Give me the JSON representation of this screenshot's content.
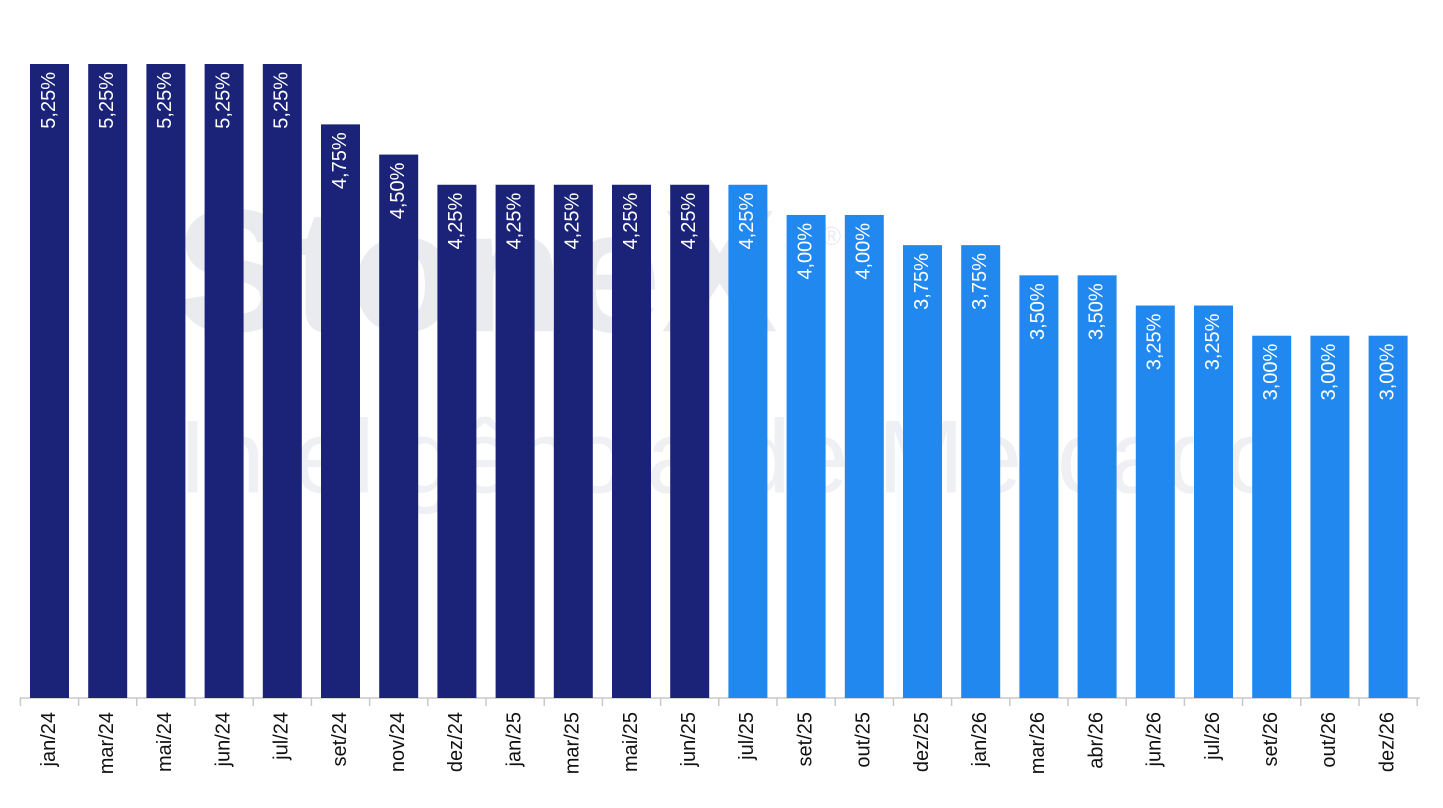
{
  "watermark": {
    "brand": "StoneX",
    "mark": "®",
    "tagline": "Inteligência de Mercado"
  },
  "chart_data": {
    "type": "bar",
    "categories": [
      "jan/24",
      "mar/24",
      "mai/24",
      "jun/24",
      "jul/24",
      "set/24",
      "nov/24",
      "dez/24",
      "jan/25",
      "mar/25",
      "mai/25",
      "jun/25",
      "jul/25",
      "set/25",
      "out/25",
      "dez/25",
      "jan/26",
      "mar/26",
      "abr/26",
      "jun/26",
      "jul/26",
      "set/26",
      "out/26",
      "dez/26"
    ],
    "values": [
      5.25,
      5.25,
      5.25,
      5.25,
      5.25,
      4.75,
      4.5,
      4.25,
      4.25,
      4.25,
      4.25,
      4.25,
      4.25,
      4,
      4,
      3.75,
      3.75,
      3.5,
      3.5,
      3.25,
      3.25,
      3,
      3,
      3
    ],
    "value_labels": [
      "5,25%",
      "5,25%",
      "5,25%",
      "5,25%",
      "5,25%",
      "4,75%",
      "4,50%",
      "4,25%",
      "4,25%",
      "4,25%",
      "4,25%",
      "4,25%",
      "4,25%",
      "4,00%",
      "4,00%",
      "3,75%",
      "3,75%",
      "3,50%",
      "3,50%",
      "3,25%",
      "3,25%",
      "3,00%",
      "3,00%",
      "3,00%"
    ],
    "colors": [
      "#1b2378",
      "#1b2378",
      "#1b2378",
      "#1b2378",
      "#1b2378",
      "#1b2378",
      "#1b2378",
      "#1b2378",
      "#1b2378",
      "#1b2378",
      "#1b2378",
      "#1b2378",
      "#2188f0",
      "#2188f0",
      "#2188f0",
      "#2188f0",
      "#2188f0",
      "#2188f0",
      "#2188f0",
      "#2188f0",
      "#2188f0",
      "#2188f0",
      "#2188f0",
      "#2188f0"
    ],
    "ylim": [
      0,
      5.25
    ]
  }
}
